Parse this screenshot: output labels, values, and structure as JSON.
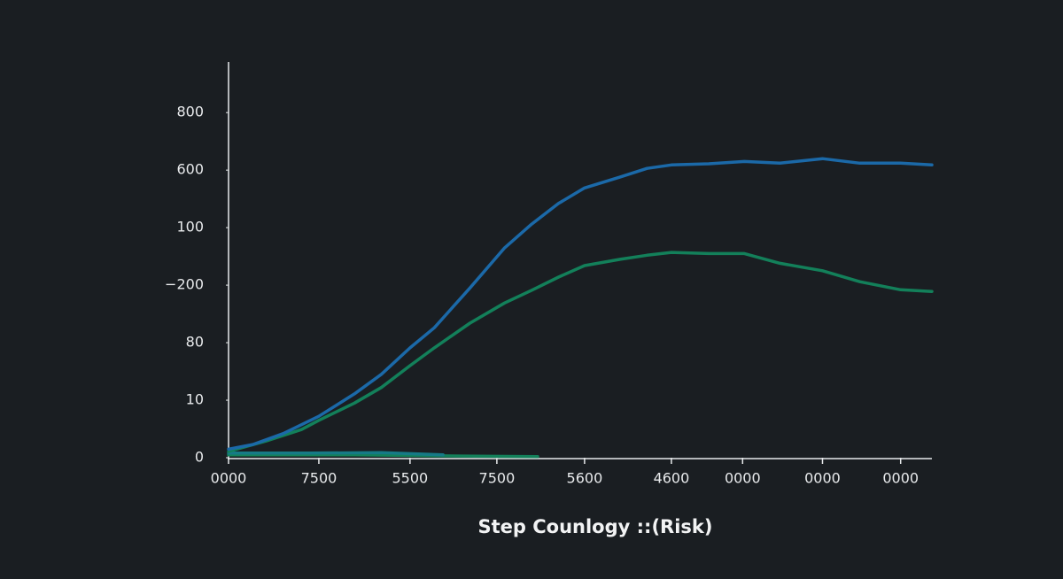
{
  "chart_data": {
    "type": "line",
    "xlabel": "Step Counlogy ::(Risk)",
    "xlim": [
      0,
      8.1
    ],
    "xticks": [
      {
        "value": 0,
        "label": "0000"
      },
      {
        "value": 1.04,
        "label": "7500"
      },
      {
        "value": 2.09,
        "label": "5500"
      },
      {
        "value": 3.09,
        "label": "7500"
      },
      {
        "value": 4.1,
        "label": "5600"
      },
      {
        "value": 5.1,
        "label": "4600"
      },
      {
        "value": 5.92,
        "label": "0000"
      },
      {
        "value": 6.84,
        "label": "0000"
      },
      {
        "value": 7.74,
        "label": "0000"
      }
    ],
    "ylim": [
      0,
      6.88
    ],
    "yticks": [
      0,
      {
        "value": 1,
        "label": "10"
      },
      {
        "value": 2,
        "label": "80"
      },
      {
        "value": 3,
        "label": "−200"
      },
      {
        "value": 4,
        "label": "100"
      },
      {
        "value": 5,
        "label": "600"
      },
      {
        "value": 6,
        "label": "800"
      }
    ],
    "series": [
      {
        "color": "#1b69a8",
        "x": [
          0,
          0.28,
          0.63,
          1.04,
          1.45,
          1.76,
          2.09,
          2.37,
          2.78,
          3.18,
          3.49,
          3.8,
          4.1,
          4.51,
          4.82,
          5.1,
          5.53,
          5.94,
          6.35,
          6.84,
          7.27,
          7.74,
          8.1
        ],
        "values": [
          0.15,
          0.23,
          0.42,
          0.72,
          1.11,
          1.45,
          1.91,
          2.26,
          2.95,
          3.65,
          4.06,
          4.42,
          4.69,
          4.88,
          5.03,
          5.09,
          5.11,
          5.15,
          5.12,
          5.2,
          5.12,
          5.12,
          5.09
        ]
      },
      {
        "color": "#13805a",
        "x": [
          0,
          0.43,
          0.84,
          1.04,
          1.45,
          1.76,
          2.09,
          2.37,
          2.78,
          3.18,
          3.49,
          3.8,
          4.1,
          4.51,
          4.82,
          5.1,
          5.53,
          5.94,
          6.35,
          6.84,
          7.27,
          7.74,
          8.1
        ],
        "values": [
          0.11,
          0.29,
          0.49,
          0.65,
          0.95,
          1.22,
          1.6,
          1.91,
          2.34,
          2.69,
          2.91,
          3.14,
          3.34,
          3.45,
          3.52,
          3.57,
          3.55,
          3.55,
          3.38,
          3.25,
          3.06,
          2.92,
          2.89
        ]
      },
      {
        "color": "#167a86",
        "x": [
          0,
          0.94,
          1.76,
          2.47
        ],
        "values": [
          0.08,
          0.08,
          0.09,
          0.05
        ]
      },
      {
        "color": "#13805a",
        "x": [
          0,
          1.45,
          2.67,
          3.56
        ],
        "values": [
          0.05,
          0.05,
          0.03,
          0.02
        ]
      }
    ]
  }
}
